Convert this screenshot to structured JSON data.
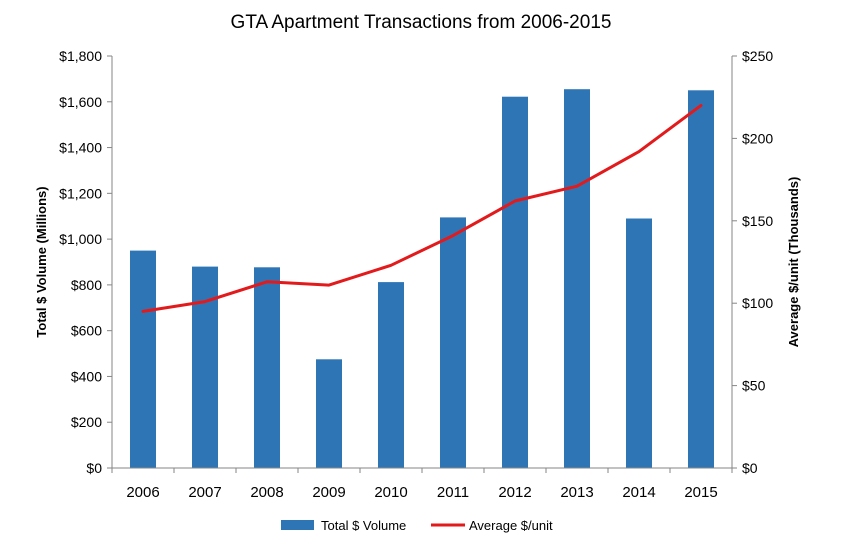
{
  "chart_data": {
    "type": "bar",
    "title": "GTA Apartment Transactions from 2006-2015",
    "categories": [
      "2006",
      "2007",
      "2008",
      "2009",
      "2010",
      "2011",
      "2012",
      "2013",
      "2014",
      "2015"
    ],
    "series": [
      {
        "name": "Total $ Volume",
        "type": "bar",
        "axis": "left",
        "color": "#2E75B6",
        "values": [
          950,
          880,
          877,
          475,
          812,
          1095,
          1622,
          1655,
          1090,
          1650
        ]
      },
      {
        "name": "Average $/unit",
        "type": "line",
        "axis": "right",
        "color": "#E31A1C",
        "values": [
          95,
          101,
          113,
          111,
          123,
          141,
          162,
          171,
          192,
          220
        ]
      }
    ],
    "left_axis": {
      "label": "Total $ Volume (Millions)",
      "range": [
        0,
        1800
      ],
      "ticks": [
        0,
        200,
        400,
        600,
        800,
        1000,
        1200,
        1400,
        1600,
        1800
      ],
      "tick_labels": [
        "$0",
        "$200",
        "$400",
        "$600",
        "$800",
        "$1,000",
        "$1,200",
        "$1,400",
        "$1,600",
        "$1,800"
      ]
    },
    "right_axis": {
      "label": "Average $/unit (Thousands)",
      "range": [
        0,
        250
      ],
      "ticks": [
        0,
        50,
        100,
        150,
        200,
        250
      ],
      "tick_labels": [
        "$0",
        "$50",
        "$100",
        "$150",
        "$200",
        "$250"
      ]
    },
    "grid": false,
    "legend_position": "bottom"
  }
}
